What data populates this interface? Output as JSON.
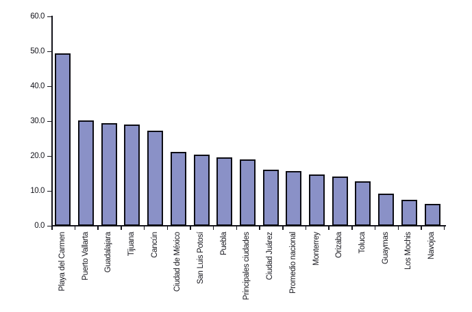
{
  "chart_data": {
    "type": "bar",
    "title": "",
    "xlabel": "",
    "ylabel": "",
    "categories": [
      "Playa del Carmen",
      "Puerto Vallarta",
      "Guadalajara",
      "Tijuana",
      "Cancún",
      "Ciudad de México",
      "San Luis Potosí",
      "Puebla",
      "Principales ciudades",
      "Ciudad Juárez",
      "Promedio nacional",
      "Monterrey",
      "Orizaba",
      "Toluca",
      "Guaymas",
      "Los Mochis",
      "Navojoa"
    ],
    "values": [
      49.4,
      30.1,
      29.5,
      29.1,
      27.3,
      21.2,
      20.3,
      19.6,
      19.1,
      16.1,
      15.6,
      14.7,
      14.1,
      12.7,
      9.3,
      7.5,
      6.2
    ],
    "ylim": [
      0,
      60
    ],
    "ytick_step": 10,
    "ytick_labels": [
      "0.0",
      "10.0",
      "20.0",
      "30.0",
      "40.0",
      "50.0",
      "60.0"
    ],
    "grid": false,
    "legend": "none",
    "colors": {
      "bar_fill": "#8a91c7",
      "bar_border": "#0b0b12",
      "axis": "#111118",
      "text": "#15151c",
      "background": "#ffffff"
    }
  }
}
